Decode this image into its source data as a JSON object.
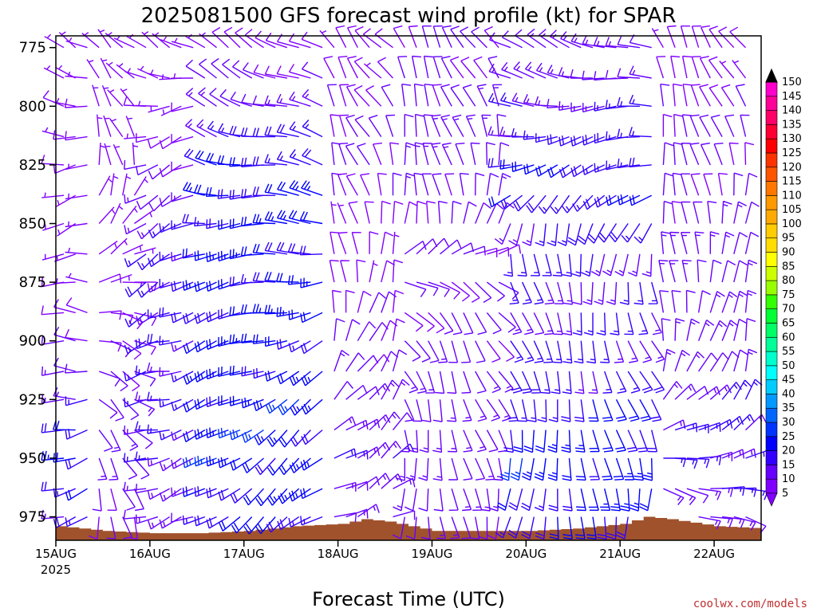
{
  "chart_data": {
    "type": "wind-barb-time-height",
    "title": "2025081500 GFS forecast wind profile (kt) for SPAR",
    "xlabel": "Forecast Time (UTC)",
    "ylabel": "",
    "credit": "coolwx.com/models",
    "y_axis": {
      "ticks": [
        775,
        800,
        825,
        850,
        875,
        900,
        925,
        950,
        975
      ],
      "range": [
        770,
        985
      ],
      "inverted": true,
      "unit": "hPa"
    },
    "x_axis": {
      "ticks": [
        "15AUG",
        "16AUG",
        "17AUG",
        "18AUG",
        "19AUG",
        "20AUG",
        "21AUG",
        "22AUG"
      ],
      "first_tick_year": "2025",
      "range_days": [
        0,
        7.5
      ],
      "step_hours": 3
    },
    "colorbar": {
      "unit": "kt",
      "levels": [
        5,
        10,
        15,
        20,
        25,
        30,
        35,
        40,
        45,
        50,
        55,
        60,
        65,
        70,
        75,
        80,
        85,
        90,
        95,
        100,
        105,
        110,
        115,
        120,
        125,
        130,
        135,
        140,
        145,
        150
      ],
      "colors": [
        "#8000ff",
        "#6600ff",
        "#3300ff",
        "#0000ff",
        "#0033ff",
        "#0066ff",
        "#0099ff",
        "#00ccff",
        "#00ffff",
        "#00ffcc",
        "#00ff99",
        "#00ff66",
        "#00ff33",
        "#33ff00",
        "#99ff00",
        "#ccff00",
        "#ffff00",
        "#ffdd00",
        "#ffcc00",
        "#ffaa00",
        "#ff9900",
        "#ff7700",
        "#ff5500",
        "#ff3300",
        "#ff0000",
        "#ff0033",
        "#ff0066",
        "#ff0099",
        "#ff00cc",
        "#ff00ff"
      ]
    },
    "colors": {
      "terrain": "#a0522d",
      "background": "#ffffff",
      "credit": "#c03030"
    },
    "barb_levels_hpa": [
      775,
      788,
      800,
      813,
      825,
      838,
      850,
      863,
      875,
      888,
      900,
      913,
      925,
      938,
      950,
      963,
      975,
      988
    ],
    "surface_pressure_days": [
      0,
      0.5,
      1,
      1.5,
      2,
      2.5,
      3,
      3.25,
      3.5,
      4,
      4.5,
      5,
      5.5,
      6,
      6.25,
      6.5,
      7,
      7.5
    ],
    "surface_pressure_hpa": [
      979,
      981,
      982,
      982,
      981,
      979,
      978,
      976,
      977,
      981,
      981,
      981,
      980,
      978,
      975,
      976,
      979,
      980
    ],
    "segments": [
      {
        "name": "15AUG",
        "days": [
          0,
          0.375
        ],
        "speed_kt": [
          6,
          6,
          7,
          7,
          7,
          6,
          6,
          6,
          7,
          8,
          10,
          12,
          14,
          18,
          20,
          18,
          16,
          15
        ],
        "dir_deg": [
          300,
          290,
          280,
          270,
          260,
          255,
          250,
          260,
          270,
          280,
          275,
          270,
          265,
          260,
          255,
          250,
          250,
          250
        ]
      },
      {
        "name": "15AUG-16AUG",
        "days": [
          0.375,
          0.875
        ],
        "speed_kt": [
          5,
          5,
          4,
          4,
          4,
          5,
          5,
          6,
          7,
          8,
          9,
          10,
          11,
          12,
          12,
          10,
          9,
          8
        ],
        "dir_deg": [
          310,
          320,
          330,
          340,
          350,
          20,
          40,
          60,
          80,
          100,
          110,
          120,
          130,
          140,
          150,
          160,
          170,
          180
        ]
      },
      {
        "name": "16AUG-17AUG",
        "days": [
          0.875,
          1.5
        ],
        "speed_kt": [
          6,
          6,
          7,
          8,
          10,
          12,
          14,
          15,
          16,
          16,
          16,
          15,
          15,
          14,
          14,
          13,
          12,
          12
        ],
        "dir_deg": [
          300,
          280,
          260,
          250,
          245,
          240,
          240,
          240,
          240,
          245,
          250,
          255,
          255,
          255,
          250,
          250,
          250,
          250
        ]
      },
      {
        "name": "17AUG",
        "days": [
          1.5,
          2.875
        ],
        "speed_kt": [
          8,
          10,
          12,
          16,
          18,
          20,
          20,
          20,
          20,
          20,
          20,
          21,
          22,
          22,
          22,
          20,
          18,
          16
        ],
        "dir_deg": [
          300,
          295,
          290,
          285,
          280,
          275,
          270,
          265,
          260,
          255,
          250,
          245,
          240,
          235,
          235,
          235,
          235,
          235
        ]
      },
      {
        "name": "18AUG",
        "days": [
          2.875,
          3.625
        ],
        "speed_kt": [
          8,
          8,
          9,
          10,
          10,
          9,
          8,
          8,
          8,
          9,
          10,
          11,
          12,
          13,
          14,
          13,
          12,
          11
        ],
        "dir_deg": [
          320,
          325,
          330,
          335,
          340,
          345,
          350,
          355,
          0,
          10,
          20,
          30,
          40,
          50,
          55,
          60,
          65,
          70
        ]
      },
      {
        "name": "19AUG",
        "days": [
          3.625,
          4.75
        ],
        "speed_kt": [
          10,
          10,
          11,
          12,
          12,
          11,
          10,
          10,
          10,
          10,
          11,
          12,
          12,
          13,
          13,
          12,
          11,
          10
        ],
        "dir_deg": [
          330,
          335,
          340,
          345,
          350,
          355,
          10,
          60,
          120,
          140,
          150,
          155,
          160,
          165,
          170,
          175,
          175,
          175
        ]
      },
      {
        "name": "20AUG-21AUG",
        "days": [
          4.75,
          6.375
        ],
        "speed_kt": [
          12,
          12,
          14,
          16,
          18,
          18,
          16,
          15,
          14,
          14,
          15,
          16,
          18,
          20,
          22,
          20,
          18,
          16
        ],
        "dir_deg": [
          290,
          280,
          270,
          260,
          250,
          230,
          200,
          180,
          170,
          165,
          160,
          160,
          165,
          170,
          175,
          180,
          185,
          190
        ]
      },
      {
        "name": "21AUG-22AUG",
        "days": [
          6.375,
          7.5
        ],
        "speed_kt": [
          8,
          8,
          9,
          10,
          10,
          10,
          11,
          12,
          12,
          12,
          12,
          12,
          14,
          15,
          15,
          14,
          12,
          10
        ],
        "dir_deg": [
          330,
          335,
          340,
          345,
          350,
          355,
          0,
          0,
          0,
          5,
          10,
          20,
          40,
          60,
          80,
          100,
          110,
          120
        ]
      }
    ]
  }
}
